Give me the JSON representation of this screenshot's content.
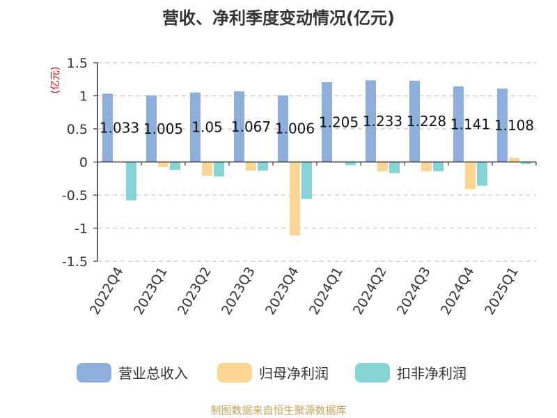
{
  "chart_data": {
    "type": "bar",
    "title": "营收、净利季度变动情况(亿元)",
    "unit_label": "(亿元)",
    "categories": [
      "2022Q4",
      "2023Q1",
      "2023Q2",
      "2023Q3",
      "2023Q4",
      "2024Q1",
      "2024Q2",
      "2024Q3",
      "2024Q4",
      "2025Q1"
    ],
    "series": [
      {
        "name": "营业总收入",
        "color": "#8eaedc",
        "values": [
          1.033,
          1.005,
          1.05,
          1.067,
          1.006,
          1.205,
          1.233,
          1.228,
          1.141,
          1.108
        ]
      },
      {
        "name": "归母净利润",
        "color": "#fdd593",
        "values": [
          0.0,
          -0.08,
          -0.21,
          -0.13,
          -1.11,
          -0.01,
          -0.14,
          -0.14,
          -0.41,
          0.06
        ]
      },
      {
        "name": "扣非净利润",
        "color": "#86d5d6",
        "values": [
          -0.58,
          -0.12,
          -0.22,
          -0.13,
          -0.56,
          -0.05,
          -0.17,
          -0.14,
          -0.36,
          -0.03
        ]
      }
    ],
    "data_labels": [
      "1.033",
      "1.005",
      "1.05",
      "1.067",
      "1.006",
      "1.205",
      "1.233",
      "1.228",
      "1.141",
      "1.108"
    ],
    "ylim": [
      -1.5,
      1.5
    ],
    "y_ticks": [
      "1.5",
      "1",
      "0.5",
      "0",
      "-0.5",
      "-1",
      "-1.5"
    ],
    "grid": true,
    "legend_position": "bottom",
    "source": "制图数据来自恒生聚源数据库"
  }
}
